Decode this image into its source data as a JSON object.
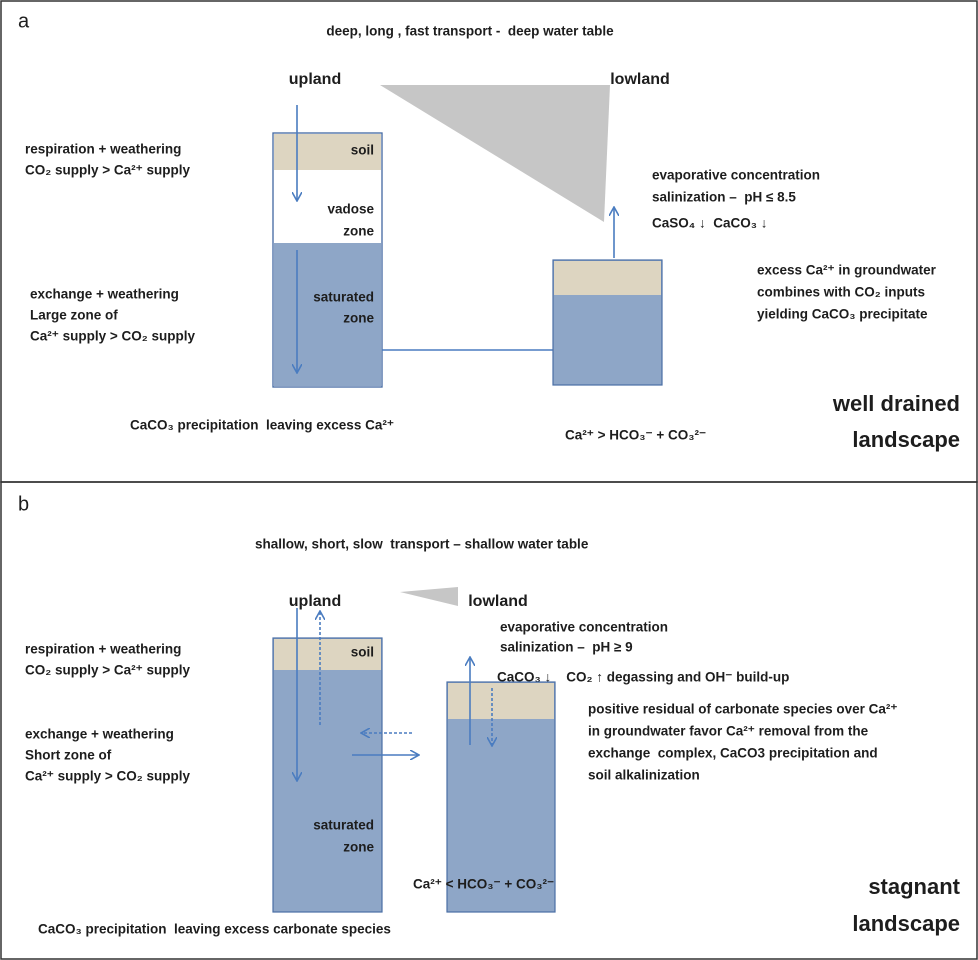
{
  "panel_a": {
    "label": "a",
    "title": "deep, long , fast transport -  deep water table",
    "upland": "upland",
    "lowland": "lowland",
    "upland_source": [
      "respiration + weathering",
      "CO₂ supply > Ca²⁺ supply"
    ],
    "upland_exchange": [
      "exchange + weathering",
      "Large zone of",
      "Ca²⁺ supply > CO₂ supply"
    ],
    "box_labels": [
      "soil",
      "vadose",
      "zone",
      "saturated",
      "zone"
    ],
    "evaporation": [
      "evaporative concentration",
      "salinization –  pH ≤ 8.5",
      "CaSO₄ ↓  CaCO₃ ↓"
    ],
    "lowland_note": [
      "excess Ca²⁺ in groundwater",
      "combines with CO₂ inputs",
      "yielding CaCO₃ precipitate"
    ],
    "upland_result": "CaCO₃ precipitation  leaving excess Ca²⁺",
    "lowland_balance": "Ca²⁺ > HCO₃⁻ + CO₃²⁻",
    "landscape": [
      "well drained",
      "landscape"
    ]
  },
  "panel_b": {
    "label": "b",
    "title": "shallow, short, slow  transport – shallow water table",
    "upland": "upland",
    "lowland": "lowland",
    "evaporation": [
      "evaporative concentration",
      "salinization –  pH ≥ 9",
      "CaCO₃ ↓    CO₂ ↑ degassing and OH⁻ build-up"
    ],
    "upland_source": [
      "respiration + weathering",
      "CO₂ supply > Ca²⁺ supply"
    ],
    "upland_exchange": [
      "exchange + weathering",
      "Short zone of",
      "Ca²⁺ supply > CO₂ supply"
    ],
    "box_labels": [
      "soil",
      "saturated",
      "zone"
    ],
    "lowland_note": [
      "positive residual of carbonate species over Ca²⁺",
      "in groundwater favor Ca²⁺ removal from the",
      "exchange  complex, CaCO3 precipitation and",
      "soil alkalinization"
    ],
    "lowland_balance": "Ca²⁺ < HCO₃⁻ + CO₃²⁻",
    "upland_result": "CaCO₃ precipitation  leaving excess carbonate species",
    "landscape": [
      "stagnant",
      "landscape"
    ]
  }
}
